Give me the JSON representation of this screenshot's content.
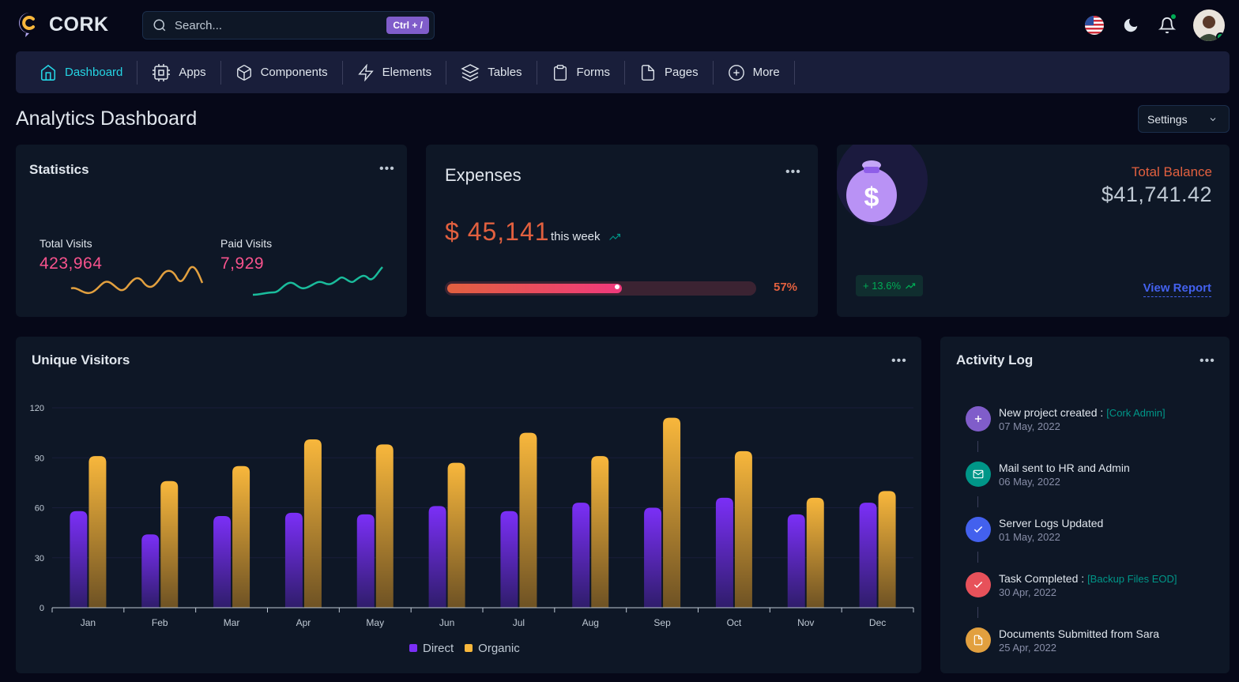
{
  "brand": {
    "name": "CORK"
  },
  "search": {
    "placeholder": "Search...",
    "shortcut": "Ctrl + /"
  },
  "header_icons": [
    "us-flag-icon",
    "moon-icon",
    "bell-icon",
    "avatar"
  ],
  "nav": {
    "items": [
      {
        "label": "Dashboard",
        "icon": "home-icon",
        "active": true
      },
      {
        "label": "Apps",
        "icon": "cpu-icon"
      },
      {
        "label": "Components",
        "icon": "box-icon"
      },
      {
        "label": "Elements",
        "icon": "zap-icon"
      },
      {
        "label": "Tables",
        "icon": "layers-icon"
      },
      {
        "label": "Forms",
        "icon": "clipboard-icon"
      },
      {
        "label": "Pages",
        "icon": "file-icon"
      },
      {
        "label": "More",
        "icon": "plus-circle-icon"
      }
    ]
  },
  "page": {
    "title": "Analytics Dashboard",
    "settings_label": "Settings"
  },
  "statistics": {
    "title": "Statistics",
    "total_visits_label": "Total Visits",
    "total_visits_value": "423,964",
    "paid_visits_label": "Paid Visits",
    "paid_visits_value": "7,929"
  },
  "expenses": {
    "title": "Expenses",
    "amount": "$ 45,141",
    "period": "this week",
    "progress_percent": 57,
    "progress_label": "57%"
  },
  "balance": {
    "label": "Total Balance",
    "value": "$41,741.42",
    "change": "+ 13.6%",
    "link": "View Report"
  },
  "visitors": {
    "title": "Unique Visitors"
  },
  "chart_data": {
    "type": "bar",
    "categories": [
      "Jan",
      "Feb",
      "Mar",
      "Apr",
      "May",
      "Jun",
      "Jul",
      "Aug",
      "Sep",
      "Oct",
      "Nov",
      "Dec"
    ],
    "series": [
      {
        "name": "Direct",
        "values": [
          58,
          44,
          55,
          57,
          56,
          61,
          58,
          63,
          60,
          66,
          56,
          63
        ],
        "color": "#7b2ff7"
      },
      {
        "name": "Organic",
        "values": [
          91,
          76,
          85,
          101,
          98,
          87,
          105,
          91,
          114,
          94,
          66,
          70
        ],
        "color": "#f8b73c"
      }
    ],
    "y_ticks": [
      "0",
      "30",
      "60",
      "90",
      "120"
    ],
    "ylim": [
      0,
      120
    ],
    "legend": "bottom-center",
    "grid": true
  },
  "activity": {
    "title": "Activity Log",
    "items": [
      {
        "title": "New project created :",
        "tag": "[Cork Admin]",
        "date": "07 May, 2022",
        "icon": "plus-icon",
        "color": "#805dca"
      },
      {
        "title": "Mail sent to HR and Admin",
        "tag": "",
        "date": "06 May, 2022",
        "icon": "mail-icon",
        "color": "#009688"
      },
      {
        "title": "Server Logs Updated",
        "tag": "",
        "date": "01 May, 2022",
        "icon": "check-icon",
        "color": "#4361ee"
      },
      {
        "title": "Task Completed :",
        "tag": "[Backup Files EOD]",
        "date": "30 Apr, 2022",
        "icon": "check-icon",
        "color": "#e7515a"
      },
      {
        "title": "Documents Submitted from Sara",
        "tag": "",
        "date": "25 Apr, 2022",
        "icon": "file-icon",
        "color": "#e2a03f"
      }
    ]
  }
}
